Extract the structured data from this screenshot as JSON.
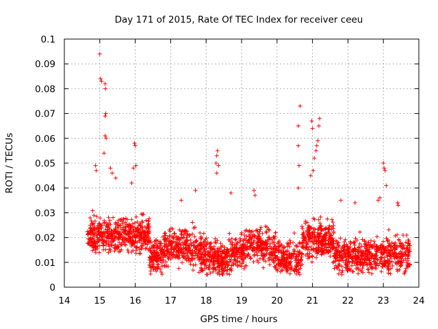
{
  "chart_data": {
    "type": "scatter",
    "title": "Day 171 of 2015, Rate Of TEC Index for receiver ceeu",
    "xlabel": "GPS time / hours",
    "ylabel": "ROTI / TECUs",
    "xlim": [
      14,
      24
    ],
    "ylim": [
      0,
      0.1
    ],
    "x_ticks": [
      "14",
      "15",
      "16",
      "17",
      "18",
      "19",
      "20",
      "21",
      "22",
      "23",
      "24"
    ],
    "y_ticks": [
      "0",
      "0.01",
      "0.02",
      "0.03",
      "0.04",
      "0.05",
      "0.06",
      "0.07",
      "0.08",
      "0.09",
      "0.1"
    ],
    "grid": true,
    "marker": "+",
    "color": "#ff0000",
    "series": [
      {
        "name": "ROTI",
        "note": "dense scatter of ~3000 points; representative outliers listed, bulk generated within band 0.005-0.035",
        "outliers": [
          [
            15.0,
            0.094
          ],
          [
            15.02,
            0.084
          ],
          [
            15.05,
            0.083
          ],
          [
            15.15,
            0.082
          ],
          [
            15.16,
            0.08
          ],
          [
            15.17,
            0.07
          ],
          [
            15.15,
            0.069
          ],
          [
            15.15,
            0.061
          ],
          [
            15.18,
            0.06
          ],
          [
            15.12,
            0.054
          ],
          [
            14.88,
            0.049
          ],
          [
            14.9,
            0.047
          ],
          [
            15.3,
            0.048
          ],
          [
            15.35,
            0.046
          ],
          [
            15.45,
            0.044
          ],
          [
            15.98,
            0.058
          ],
          [
            16.0,
            0.057
          ],
          [
            16.02,
            0.049
          ],
          [
            15.95,
            0.048
          ],
          [
            15.9,
            0.042
          ],
          [
            18.32,
            0.055
          ],
          [
            18.3,
            0.053
          ],
          [
            18.28,
            0.05
          ],
          [
            18.35,
            0.049
          ],
          [
            18.3,
            0.046
          ],
          [
            19.35,
            0.039
          ],
          [
            19.38,
            0.037
          ],
          [
            20.65,
            0.073
          ],
          [
            20.6,
            0.065
          ],
          [
            20.6,
            0.057
          ],
          [
            20.62,
            0.049
          ],
          [
            20.6,
            0.04
          ],
          [
            20.98,
            0.067
          ],
          [
            21.0,
            0.064
          ],
          [
            21.2,
            0.068
          ],
          [
            21.18,
            0.065
          ],
          [
            21.15,
            0.059
          ],
          [
            21.12,
            0.057
          ],
          [
            21.1,
            0.055
          ],
          [
            21.05,
            0.052
          ],
          [
            21.02,
            0.047
          ],
          [
            20.95,
            0.045
          ],
          [
            23.0,
            0.05
          ],
          [
            23.02,
            0.048
          ],
          [
            23.05,
            0.047
          ],
          [
            23.08,
            0.041
          ],
          [
            22.9,
            0.036
          ],
          [
            23.4,
            0.034
          ],
          [
            23.42,
            0.033
          ],
          [
            17.7,
            0.039
          ],
          [
            17.3,
            0.035
          ],
          [
            18.7,
            0.038
          ],
          [
            21.8,
            0.035
          ],
          [
            22.2,
            0.034
          ],
          [
            22.85,
            0.035
          ]
        ]
      }
    ]
  }
}
